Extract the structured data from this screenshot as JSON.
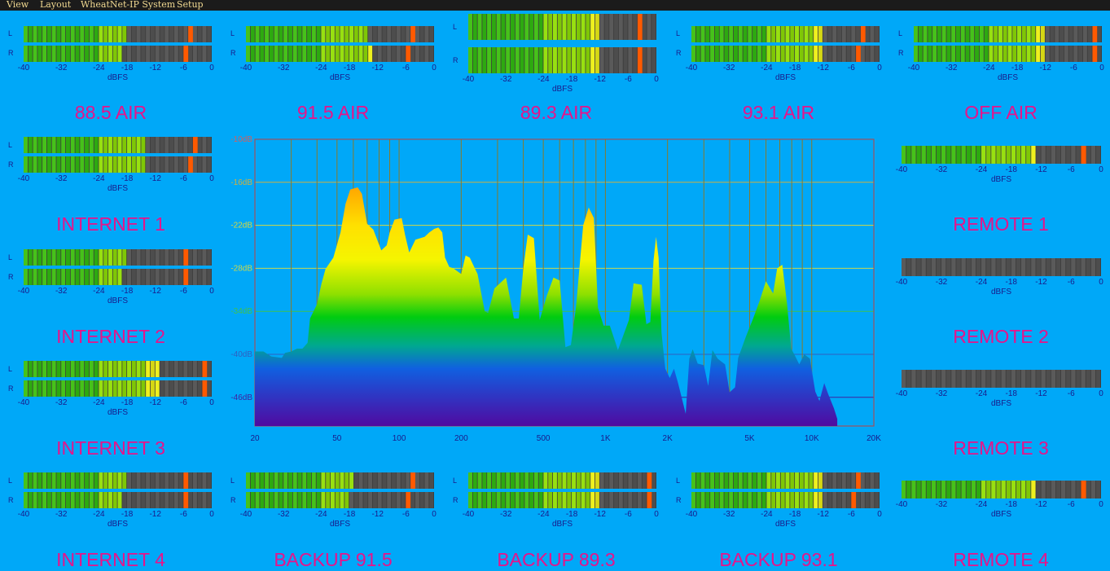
{
  "menu": [
    "View",
    "Layout",
    "WheatNet-IP System",
    "Setup"
  ],
  "colors": {
    "background": "#00a8f8",
    "title": "#e8138a",
    "scale_text": "#1a1a8a",
    "menubar": "#1b1b1b",
    "menu_text": "#f0d890",
    "peak": "#ff5a00"
  },
  "meter_scale": [
    "-40",
    "-32",
    "-24",
    "-18",
    "-12",
    "-6",
    "0"
  ],
  "meter_unit": "dBFS",
  "channel_labels": [
    "L",
    "R"
  ],
  "meters": [
    {
      "title": "88.5 AIR",
      "stereo": true,
      "levels": [
        -18,
        -19
      ],
      "peaks": [
        -5,
        -6
      ]
    },
    {
      "title": "91.5 AIR",
      "stereo": true,
      "levels": [
        -14,
        -13
      ],
      "peaks": [
        -5,
        -6
      ]
    },
    {
      "title": "89.3 AIR",
      "stereo": true,
      "levels": [
        -12,
        -12
      ],
      "peaks": [
        -4,
        -4
      ]
    },
    {
      "title": "93.1 AIR",
      "stereo": true,
      "levels": [
        -12,
        -12
      ],
      "peaks": [
        -4,
        -5
      ]
    },
    {
      "title": "OFF AIR",
      "stereo": true,
      "levels": [
        -12,
        -12
      ],
      "peaks": [
        -2,
        -2
      ]
    },
    {
      "title": "INTERNET 1",
      "stereo": true,
      "levels": [
        -14,
        -14
      ],
      "peaks": [
        -4,
        -5
      ]
    },
    {
      "title": "REMOTE 1",
      "stereo": false,
      "levels": [
        -13
      ],
      "peaks": [
        -4
      ]
    },
    {
      "title": "INTERNET 2",
      "stereo": true,
      "levels": [
        -18,
        -19
      ],
      "peaks": [
        -6,
        -6
      ]
    },
    {
      "title": "REMOTE 2",
      "stereo": false,
      "levels": [
        -40
      ],
      "peaks": [
        null
      ]
    },
    {
      "title": "INTERNET 3",
      "stereo": true,
      "levels": [
        -11,
        -11
      ],
      "peaks": [
        -2,
        -2
      ]
    },
    {
      "title": "REMOTE 3",
      "stereo": false,
      "levels": [
        -40
      ],
      "peaks": [
        null
      ]
    },
    {
      "title": "INTERNET 4",
      "stereo": true,
      "levels": [
        -18,
        -19
      ],
      "peaks": [
        -6,
        -6
      ]
    },
    {
      "title": "BACKUP 91.5",
      "stereo": true,
      "levels": [
        -17,
        -18
      ],
      "peaks": [
        -5,
        -6
      ]
    },
    {
      "title": "BACKUP 89.3",
      "stereo": true,
      "levels": [
        -12,
        -12
      ],
      "peaks": [
        -2,
        -2
      ]
    },
    {
      "title": "BACKUP 93.1",
      "stereo": true,
      "levels": [
        -12,
        -12
      ],
      "peaks": [
        -5,
        -6
      ]
    },
    {
      "title": "REMOTE 4",
      "stereo": false,
      "levels": [
        -13
      ],
      "peaks": [
        -4
      ]
    }
  ],
  "chart_data": {
    "type": "area",
    "y_labels": [
      "-10dB",
      "-16dB",
      "-22dB",
      "-28dB",
      "-34dB",
      "-40dB",
      "-46dB"
    ],
    "x_labels": [
      "20",
      "50",
      "100",
      "200",
      "500",
      "1K",
      "2K",
      "5K",
      "10K",
      "20K"
    ],
    "xlim": [
      20,
      20000
    ],
    "ylim": [
      -50,
      -10
    ],
    "x_scale": "log",
    "spectrum": [
      [
        20,
        -39.6
      ],
      [
        22,
        -39.6
      ],
      [
        24,
        -40.3
      ],
      [
        27,
        -40.5
      ],
      [
        28,
        -39.8
      ],
      [
        30,
        -39.6
      ],
      [
        32,
        -39.2
      ],
      [
        34,
        -39.2
      ],
      [
        36,
        -38.4
      ],
      [
        37,
        -35
      ],
      [
        40,
        -33
      ],
      [
        42,
        -30.2
      ],
      [
        44,
        -28.1
      ],
      [
        48,
        -26.5
      ],
      [
        52,
        -23
      ],
      [
        55,
        -19
      ],
      [
        58,
        -17
      ],
      [
        63,
        -16.7
      ],
      [
        66,
        -17.6
      ],
      [
        70,
        -21.8
      ],
      [
        75,
        -22.6
      ],
      [
        82,
        -25.5
      ],
      [
        87,
        -24.8
      ],
      [
        90,
        -23
      ],
      [
        95,
        -21.2
      ],
      [
        103,
        -21
      ],
      [
        107,
        -23.4
      ],
      [
        112,
        -25.8
      ],
      [
        120,
        -24
      ],
      [
        133,
        -23.6
      ],
      [
        140,
        -23
      ],
      [
        148,
        -22.5
      ],
      [
        155,
        -22.3
      ],
      [
        162,
        -23
      ],
      [
        167,
        -26.5
      ],
      [
        175,
        -27.8
      ],
      [
        183,
        -28
      ],
      [
        200,
        -28.8
      ],
      [
        210,
        -26.2
      ],
      [
        220,
        -26.5
      ],
      [
        240,
        -28.8
      ],
      [
        260,
        -34
      ],
      [
        270,
        -34.2
      ],
      [
        290,
        -30.8
      ],
      [
        330,
        -29.3
      ],
      [
        360,
        -35
      ],
      [
        380,
        -35
      ],
      [
        400,
        -28
      ],
      [
        420,
        -23.3
      ],
      [
        450,
        -23.8
      ],
      [
        480,
        -35.2
      ],
      [
        520,
        -31.8
      ],
      [
        560,
        -29.3
      ],
      [
        600,
        -29.7
      ],
      [
        640,
        -39
      ],
      [
        680,
        -38.7
      ],
      [
        720,
        -33.4
      ],
      [
        780,
        -22
      ],
      [
        830,
        -19.5
      ],
      [
        880,
        -21
      ],
      [
        920,
        -33.5
      ],
      [
        980,
        -36
      ],
      [
        1050,
        -36
      ],
      [
        1150,
        -39.4
      ],
      [
        1300,
        -35.2
      ],
      [
        1370,
        -30.1
      ],
      [
        1500,
        -30.3
      ],
      [
        1580,
        -35.8
      ],
      [
        1650,
        -35.5
      ],
      [
        1710,
        -27
      ],
      [
        1760,
        -23.6
      ],
      [
        1810,
        -26.5
      ],
      [
        1870,
        -37
      ],
      [
        1950,
        -42
      ],
      [
        2050,
        -43.3
      ],
      [
        2150,
        -42
      ],
      [
        2250,
        -44
      ],
      [
        2450,
        -48.3
      ],
      [
        2550,
        -40.6
      ],
      [
        2650,
        -39.3
      ],
      [
        2800,
        -41.3
      ],
      [
        3000,
        -41.5
      ],
      [
        3150,
        -44.4
      ],
      [
        3300,
        -39.4
      ],
      [
        3500,
        -40.6
      ],
      [
        3800,
        -41.4
      ],
      [
        4000,
        -45.3
      ],
      [
        4250,
        -44.6
      ],
      [
        4400,
        -40.5
      ],
      [
        4800,
        -37.5
      ],
      [
        5200,
        -35
      ],
      [
        5600,
        -32.5
      ],
      [
        6000,
        -29.8
      ],
      [
        6500,
        -31.5
      ],
      [
        6800,
        -28
      ],
      [
        7200,
        -27.5
      ],
      [
        7600,
        -33
      ],
      [
        7950,
        -39.2
      ],
      [
        8300,
        -40.2
      ],
      [
        8700,
        -41.4
      ],
      [
        9200,
        -40
      ],
      [
        9800,
        -40.6
      ],
      [
        10400,
        -45.2
      ],
      [
        10900,
        -46.5
      ],
      [
        11500,
        -44
      ],
      [
        12000,
        -45.5
      ],
      [
        12800,
        -47.5
      ],
      [
        13300,
        -49
      ]
    ]
  }
}
